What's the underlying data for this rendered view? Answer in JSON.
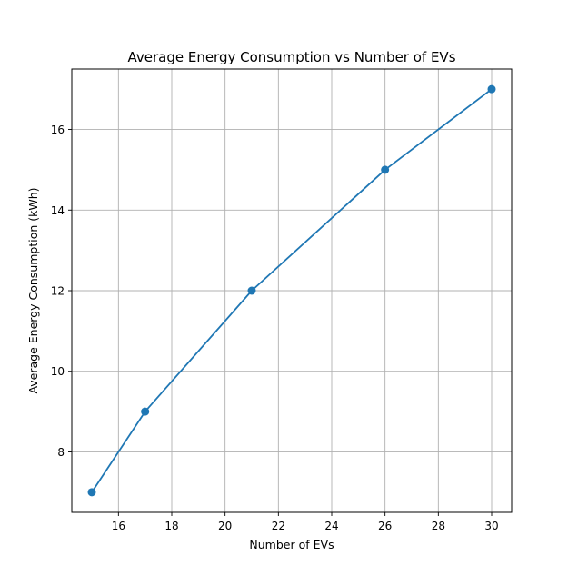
{
  "chart_data": {
    "type": "line",
    "title": "Average Energy Consumption vs Number of EVs",
    "xlabel": "Number of EVs",
    "ylabel": "Average Energy Consumption (kWh)",
    "x": [
      15,
      17,
      21,
      26,
      30
    ],
    "y": [
      7,
      9,
      12,
      15,
      17
    ],
    "xlim": [
      14.25,
      30.75
    ],
    "ylim": [
      6.5,
      17.5
    ],
    "xticks": [
      16,
      18,
      20,
      22,
      24,
      26,
      28,
      30
    ],
    "yticks": [
      8,
      10,
      12,
      14,
      16
    ],
    "grid": true,
    "marker": "circle",
    "colors": {
      "series": "#1f77b4",
      "grid": "#b0b0b0",
      "axes": "#000000"
    }
  }
}
